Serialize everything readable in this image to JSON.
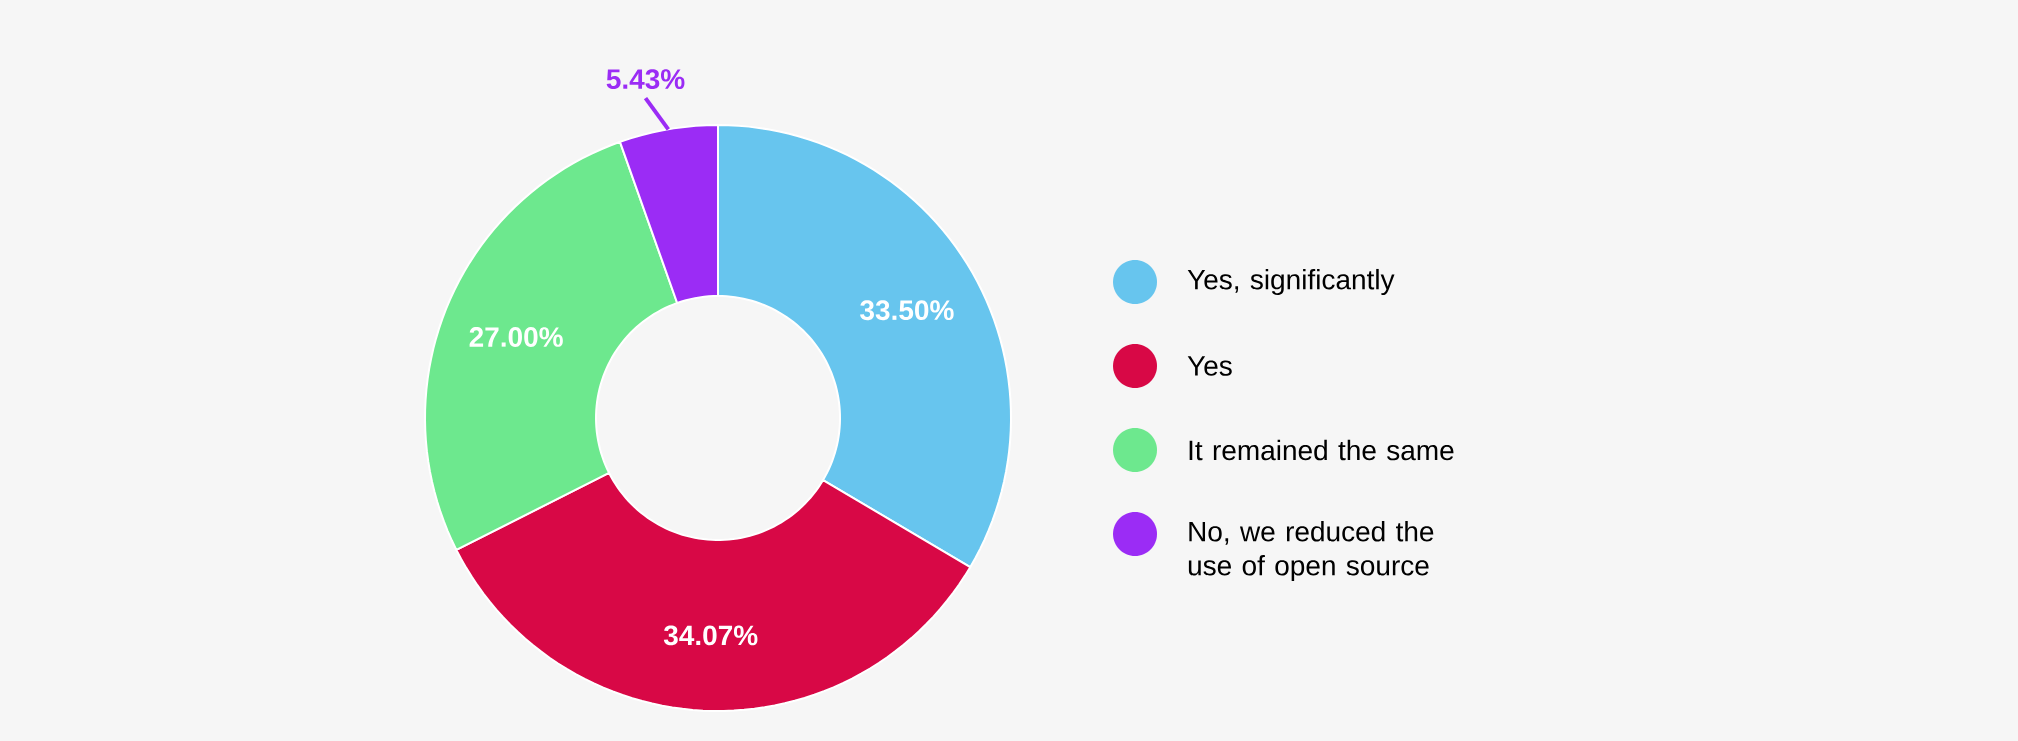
{
  "chart_data": {
    "type": "donut",
    "categories": [
      "Yes, significantly",
      "Yes",
      "It remained the same",
      "No, we reduced the use of open source"
    ],
    "values": [
      33.5,
      34.07,
      27.0,
      5.43
    ],
    "colors": [
      "#67c5ee",
      "#d80846",
      "#6de88e",
      "#9b2cf5"
    ],
    "value_labels": [
      "33.50%",
      "34.07%",
      "27.00%",
      "5.43%"
    ],
    "legend": "right"
  }
}
